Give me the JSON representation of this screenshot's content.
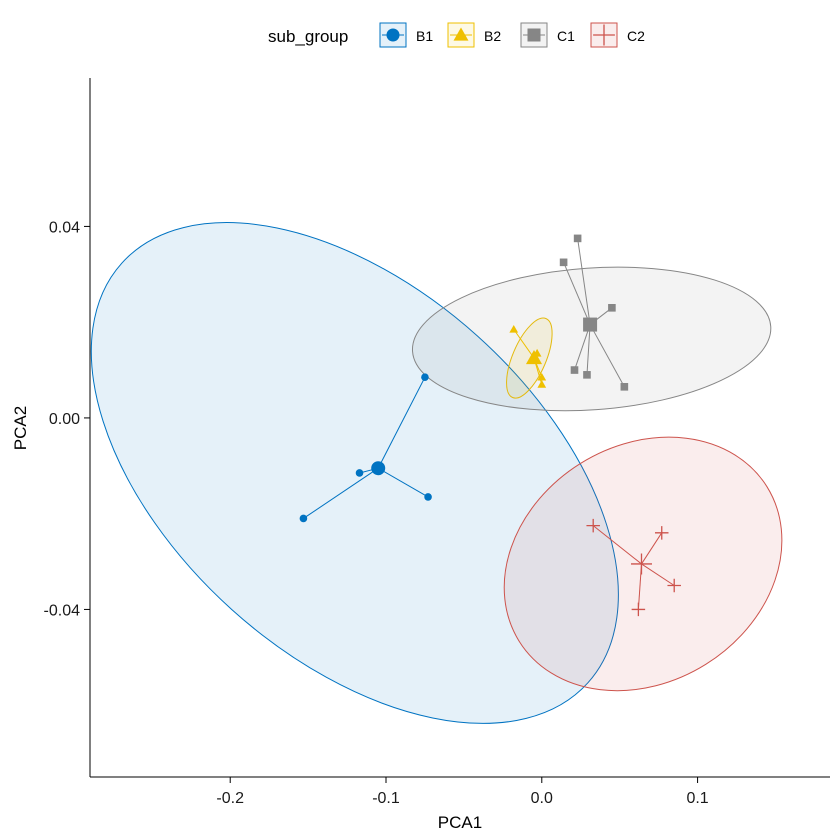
{
  "chart_data": {
    "type": "scatter",
    "xlabel": "PCA1",
    "ylabel": "PCA2",
    "xlim": [
      -0.29,
      0.185
    ],
    "ylim": [
      -0.075,
      0.071
    ],
    "x_ticks": [
      -0.2,
      -0.1,
      0.0,
      0.1
    ],
    "x_tick_labels": [
      "-0.2",
      "-0.1",
      "0.0",
      "0.1"
    ],
    "y_ticks": [
      -0.04,
      0.0,
      0.04
    ],
    "y_tick_labels": [
      "-0.04",
      "0.00",
      "0.04"
    ],
    "grid": false,
    "legend": {
      "title": "sub_group",
      "position": "top"
    },
    "series": [
      {
        "name": "B1",
        "color": "#0073C2",
        "shape": "circle",
        "centroid": [
          -0.105,
          -0.0105
        ],
        "points": [
          [
            -0.075,
            0.0085
          ],
          [
            -0.073,
            -0.0165
          ],
          [
            -0.117,
            -0.0115
          ],
          [
            -0.153,
            -0.021
          ]
        ],
        "ellipse": {
          "center": [
            -0.12,
            -0.0115
          ],
          "rx": 0.118,
          "ry": 0.0655,
          "angle_deg": 48
        }
      },
      {
        "name": "B2",
        "color": "#EFC000",
        "shape": "triangle",
        "centroid": [
          -0.005,
          0.0125
        ],
        "points": [
          [
            -0.018,
            0.0185
          ],
          [
            -0.003,
            0.0135
          ],
          [
            0.0,
            0.0085
          ],
          [
            0.0,
            0.007
          ]
        ],
        "ellipse": {
          "center": [
            -0.008,
            0.0125
          ],
          "rx": 0.0275,
          "ry": 0.0035,
          "angle_deg": 67
        }
      },
      {
        "name": "C1",
        "color": "#868686",
        "shape": "square",
        "centroid": [
          0.031,
          0.0195
        ],
        "points": [
          [
            0.023,
            0.0375
          ],
          [
            0.014,
            0.0325
          ],
          [
            0.045,
            0.023
          ],
          [
            0.021,
            0.01
          ],
          [
            0.029,
            0.009
          ],
          [
            0.053,
            0.0065
          ]
        ],
        "ellipse": {
          "center": [
            0.032,
            0.0165
          ],
          "rx": 0.0455,
          "ry": 0.0375,
          "angle_deg": -86
        }
      },
      {
        "name": "C2",
        "color": "#CD534C",
        "shape": "plus",
        "centroid": [
          0.064,
          -0.0305
        ],
        "points": [
          [
            0.033,
            -0.0225
          ],
          [
            0.077,
            -0.024
          ],
          [
            0.085,
            -0.035
          ],
          [
            0.062,
            -0.04
          ]
        ],
        "ellipse": {
          "center": [
            0.065,
            -0.0305
          ],
          "rx": 0.076,
          "ry": 0.0305,
          "angle_deg": -58
        }
      }
    ]
  }
}
